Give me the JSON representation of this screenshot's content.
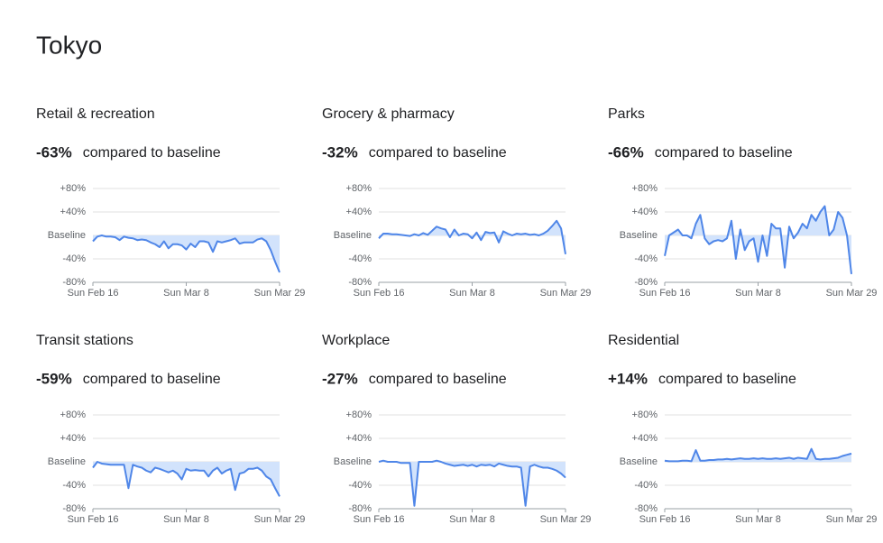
{
  "page_title": "Tokyo",
  "chart_data": [
    {
      "type": "line",
      "title": "Retail & recreation",
      "summary": "-63%",
      "note": "compared to baseline",
      "color": "#4f86e8",
      "fill": "#d2e3fc",
      "categories": [
        "Sun Feb 16",
        null,
        null,
        null,
        null,
        null,
        null,
        null,
        null,
        null,
        null,
        null,
        null,
        null,
        null,
        null,
        null,
        null,
        null,
        null,
        null,
        "Sun Mar 8",
        null,
        null,
        null,
        null,
        null,
        null,
        null,
        null,
        null,
        null,
        null,
        null,
        null,
        null,
        null,
        null,
        null,
        null,
        null,
        null,
        "Sun Mar 29"
      ],
      "values": [
        -10,
        -2,
        0,
        -2,
        -2,
        -3,
        -8,
        -2,
        -4,
        -5,
        -8,
        -7,
        -8,
        -12,
        -15,
        -20,
        -10,
        -22,
        -15,
        -15,
        -17,
        -24,
        -14,
        -20,
        -10,
        -10,
        -12,
        -28,
        -10,
        -12,
        -10,
        -8,
        -5,
        -14,
        -12,
        -12,
        -12,
        -7,
        -5,
        -10,
        -25,
        -45,
        -63
      ],
      "ylim": [
        -80,
        80
      ],
      "yticks": [
        {
          "value": -80,
          "label": "-80%"
        },
        {
          "value": -40,
          "label": "-40%"
        },
        {
          "value": 0,
          "label": "Baseline"
        },
        {
          "value": 40,
          "label": "+40%"
        },
        {
          "value": 80,
          "label": "+80%"
        }
      ]
    },
    {
      "type": "line",
      "title": "Grocery & pharmacy",
      "summary": "-32%",
      "note": "compared to baseline",
      "color": "#4f86e8",
      "fill": "#d2e3fc",
      "categories": [
        "Sun Feb 16",
        null,
        null,
        null,
        null,
        null,
        null,
        null,
        null,
        null,
        null,
        null,
        null,
        null,
        null,
        null,
        null,
        null,
        null,
        null,
        null,
        "Sun Mar 8",
        null,
        null,
        null,
        null,
        null,
        null,
        null,
        null,
        null,
        null,
        null,
        null,
        null,
        null,
        null,
        null,
        null,
        null,
        null,
        null,
        "Sun Mar 29"
      ],
      "values": [
        -5,
        3,
        3,
        2,
        2,
        1,
        0,
        -1,
        2,
        0,
        4,
        1,
        8,
        15,
        12,
        10,
        -3,
        10,
        0,
        3,
        2,
        -5,
        5,
        -8,
        6,
        4,
        5,
        -12,
        7,
        3,
        0,
        3,
        2,
        3,
        1,
        2,
        0,
        3,
        8,
        16,
        25,
        12,
        -32
      ],
      "ylim": [
        -80,
        80
      ],
      "yticks": [
        {
          "value": -80,
          "label": "-80%"
        },
        {
          "value": -40,
          "label": "-40%"
        },
        {
          "value": 0,
          "label": "Baseline"
        },
        {
          "value": 40,
          "label": "+40%"
        },
        {
          "value": 80,
          "label": "+80%"
        }
      ]
    },
    {
      "type": "line",
      "title": "Parks",
      "summary": "-66%",
      "note": "compared to baseline",
      "color": "#4f86e8",
      "fill": "#d2e3fc",
      "categories": [
        "Sun Feb 16",
        null,
        null,
        null,
        null,
        null,
        null,
        null,
        null,
        null,
        null,
        null,
        null,
        null,
        null,
        null,
        null,
        null,
        null,
        null,
        null,
        "Sun Mar 8",
        null,
        null,
        null,
        null,
        null,
        null,
        null,
        null,
        null,
        null,
        null,
        null,
        null,
        null,
        null,
        null,
        null,
        null,
        null,
        null,
        "Sun Mar 29"
      ],
      "values": [
        -35,
        0,
        5,
        10,
        0,
        0,
        -5,
        20,
        35,
        -5,
        -15,
        -10,
        -8,
        -10,
        -5,
        25,
        -40,
        10,
        -25,
        -10,
        -5,
        -45,
        0,
        -35,
        20,
        12,
        12,
        -55,
        15,
        -5,
        5,
        20,
        12,
        35,
        25,
        40,
        50,
        0,
        10,
        40,
        30,
        0,
        -66
      ],
      "ylim": [
        -80,
        80
      ],
      "yticks": [
        {
          "value": -80,
          "label": "-80%"
        },
        {
          "value": -40,
          "label": "-40%"
        },
        {
          "value": 0,
          "label": "Baseline"
        },
        {
          "value": 40,
          "label": "+40%"
        },
        {
          "value": 80,
          "label": "+80%"
        }
      ]
    },
    {
      "type": "line",
      "title": "Transit stations",
      "summary": "-59%",
      "note": "compared to baseline",
      "color": "#4f86e8",
      "fill": "#d2e3fc",
      "categories": [
        "Sun Feb 16",
        null,
        null,
        null,
        null,
        null,
        null,
        null,
        null,
        null,
        null,
        null,
        null,
        null,
        null,
        null,
        null,
        null,
        null,
        null,
        null,
        "Sun Mar 8",
        null,
        null,
        null,
        null,
        null,
        null,
        null,
        null,
        null,
        null,
        null,
        null,
        null,
        null,
        null,
        null,
        null,
        null,
        null,
        null,
        "Sun Mar 29"
      ],
      "values": [
        -10,
        0,
        -3,
        -4,
        -5,
        -5,
        -5,
        -5,
        -45,
        -5,
        -8,
        -10,
        -15,
        -18,
        -10,
        -12,
        -15,
        -18,
        -15,
        -20,
        -30,
        -12,
        -15,
        -14,
        -15,
        -15,
        -25,
        -15,
        -10,
        -20,
        -15,
        -12,
        -48,
        -20,
        -18,
        -12,
        -12,
        -10,
        -15,
        -25,
        -30,
        -45,
        -59
      ],
      "ylim": [
        -80,
        80
      ],
      "yticks": [
        {
          "value": -80,
          "label": "-80%"
        },
        {
          "value": -40,
          "label": "-40%"
        },
        {
          "value": 0,
          "label": "Baseline"
        },
        {
          "value": 40,
          "label": "+40%"
        },
        {
          "value": 80,
          "label": "+80%"
        }
      ]
    },
    {
      "type": "line",
      "title": "Workplace",
      "summary": "-27%",
      "note": "compared to baseline",
      "color": "#4f86e8",
      "fill": "#d2e3fc",
      "categories": [
        "Sun Feb 16",
        null,
        null,
        null,
        null,
        null,
        null,
        null,
        null,
        null,
        null,
        null,
        null,
        null,
        null,
        null,
        null,
        null,
        null,
        null,
        null,
        "Sun Mar 8",
        null,
        null,
        null,
        null,
        null,
        null,
        null,
        null,
        null,
        null,
        null,
        null,
        null,
        null,
        null,
        null,
        null,
        null,
        null,
        null,
        "Sun Mar 29"
      ],
      "values": [
        0,
        2,
        0,
        0,
        0,
        -2,
        -2,
        -2,
        -75,
        0,
        0,
        0,
        0,
        2,
        0,
        -3,
        -5,
        -7,
        -6,
        -5,
        -7,
        -5,
        -8,
        -5,
        -6,
        -5,
        -8,
        -3,
        -5,
        -7,
        -8,
        -8,
        -10,
        -75,
        -8,
        -5,
        -8,
        -10,
        -10,
        -12,
        -15,
        -20,
        -27
      ],
      "ylim": [
        -80,
        80
      ],
      "yticks": [
        {
          "value": -80,
          "label": "-80%"
        },
        {
          "value": -40,
          "label": "-40%"
        },
        {
          "value": 0,
          "label": "Baseline"
        },
        {
          "value": 40,
          "label": "+40%"
        },
        {
          "value": 80,
          "label": "+80%"
        }
      ]
    },
    {
      "type": "line",
      "title": "Residential",
      "summary": "+14%",
      "note": "compared to baseline",
      "color": "#4f86e8",
      "fill": "#d2e3fc",
      "categories": [
        "Sun Feb 16",
        null,
        null,
        null,
        null,
        null,
        null,
        null,
        null,
        null,
        null,
        null,
        null,
        null,
        null,
        null,
        null,
        null,
        null,
        null,
        null,
        "Sun Mar 8",
        null,
        null,
        null,
        null,
        null,
        null,
        null,
        null,
        null,
        null,
        null,
        null,
        null,
        null,
        null,
        null,
        null,
        null,
        null,
        null,
        "Sun Mar 29"
      ],
      "values": [
        2,
        1,
        1,
        1,
        2,
        2,
        1,
        20,
        2,
        2,
        3,
        3,
        4,
        4,
        5,
        4,
        5,
        6,
        5,
        5,
        6,
        5,
        6,
        5,
        5,
        6,
        5,
        6,
        7,
        5,
        7,
        6,
        5,
        22,
        5,
        4,
        5,
        5,
        6,
        7,
        10,
        12,
        14
      ],
      "ylim": [
        -80,
        80
      ],
      "yticks": [
        {
          "value": -80,
          "label": "-80%"
        },
        {
          "value": -40,
          "label": "-40%"
        },
        {
          "value": 0,
          "label": "Baseline"
        },
        {
          "value": 40,
          "label": "+40%"
        },
        {
          "value": 80,
          "label": "+80%"
        }
      ]
    }
  ]
}
